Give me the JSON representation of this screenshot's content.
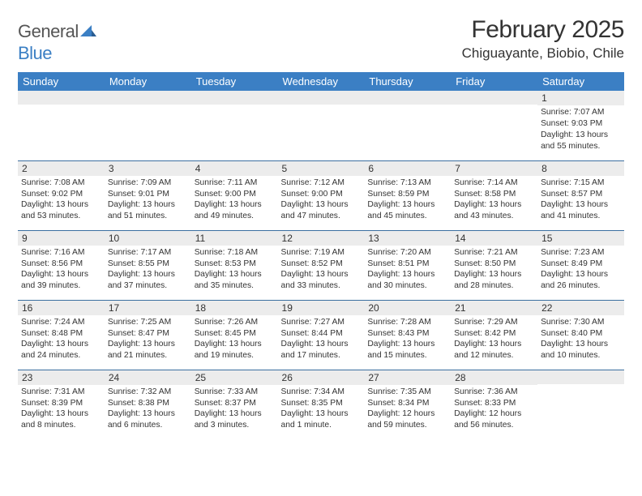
{
  "logo": {
    "text1": "General",
    "text2": "Blue"
  },
  "title": "February 2025",
  "location": "Chiguayante, Biobio, Chile",
  "header_bg": "#3b7fc4",
  "header_fg": "#ffffff",
  "daynum_bg": "#ececec",
  "rule_color": "#3b6fa0",
  "weekdays": [
    "Sunday",
    "Monday",
    "Tuesday",
    "Wednesday",
    "Thursday",
    "Friday",
    "Saturday"
  ],
  "weeks": [
    [
      {
        "n": "",
        "sr": "",
        "ss": "",
        "dl": ""
      },
      {
        "n": "",
        "sr": "",
        "ss": "",
        "dl": ""
      },
      {
        "n": "",
        "sr": "",
        "ss": "",
        "dl": ""
      },
      {
        "n": "",
        "sr": "",
        "ss": "",
        "dl": ""
      },
      {
        "n": "",
        "sr": "",
        "ss": "",
        "dl": ""
      },
      {
        "n": "",
        "sr": "",
        "ss": "",
        "dl": ""
      },
      {
        "n": "1",
        "sr": "Sunrise: 7:07 AM",
        "ss": "Sunset: 9:03 PM",
        "dl": "Daylight: 13 hours and 55 minutes."
      }
    ],
    [
      {
        "n": "2",
        "sr": "Sunrise: 7:08 AM",
        "ss": "Sunset: 9:02 PM",
        "dl": "Daylight: 13 hours and 53 minutes."
      },
      {
        "n": "3",
        "sr": "Sunrise: 7:09 AM",
        "ss": "Sunset: 9:01 PM",
        "dl": "Daylight: 13 hours and 51 minutes."
      },
      {
        "n": "4",
        "sr": "Sunrise: 7:11 AM",
        "ss": "Sunset: 9:00 PM",
        "dl": "Daylight: 13 hours and 49 minutes."
      },
      {
        "n": "5",
        "sr": "Sunrise: 7:12 AM",
        "ss": "Sunset: 9:00 PM",
        "dl": "Daylight: 13 hours and 47 minutes."
      },
      {
        "n": "6",
        "sr": "Sunrise: 7:13 AM",
        "ss": "Sunset: 8:59 PM",
        "dl": "Daylight: 13 hours and 45 minutes."
      },
      {
        "n": "7",
        "sr": "Sunrise: 7:14 AM",
        "ss": "Sunset: 8:58 PM",
        "dl": "Daylight: 13 hours and 43 minutes."
      },
      {
        "n": "8",
        "sr": "Sunrise: 7:15 AM",
        "ss": "Sunset: 8:57 PM",
        "dl": "Daylight: 13 hours and 41 minutes."
      }
    ],
    [
      {
        "n": "9",
        "sr": "Sunrise: 7:16 AM",
        "ss": "Sunset: 8:56 PM",
        "dl": "Daylight: 13 hours and 39 minutes."
      },
      {
        "n": "10",
        "sr": "Sunrise: 7:17 AM",
        "ss": "Sunset: 8:55 PM",
        "dl": "Daylight: 13 hours and 37 minutes."
      },
      {
        "n": "11",
        "sr": "Sunrise: 7:18 AM",
        "ss": "Sunset: 8:53 PM",
        "dl": "Daylight: 13 hours and 35 minutes."
      },
      {
        "n": "12",
        "sr": "Sunrise: 7:19 AM",
        "ss": "Sunset: 8:52 PM",
        "dl": "Daylight: 13 hours and 33 minutes."
      },
      {
        "n": "13",
        "sr": "Sunrise: 7:20 AM",
        "ss": "Sunset: 8:51 PM",
        "dl": "Daylight: 13 hours and 30 minutes."
      },
      {
        "n": "14",
        "sr": "Sunrise: 7:21 AM",
        "ss": "Sunset: 8:50 PM",
        "dl": "Daylight: 13 hours and 28 minutes."
      },
      {
        "n": "15",
        "sr": "Sunrise: 7:23 AM",
        "ss": "Sunset: 8:49 PM",
        "dl": "Daylight: 13 hours and 26 minutes."
      }
    ],
    [
      {
        "n": "16",
        "sr": "Sunrise: 7:24 AM",
        "ss": "Sunset: 8:48 PM",
        "dl": "Daylight: 13 hours and 24 minutes."
      },
      {
        "n": "17",
        "sr": "Sunrise: 7:25 AM",
        "ss": "Sunset: 8:47 PM",
        "dl": "Daylight: 13 hours and 21 minutes."
      },
      {
        "n": "18",
        "sr": "Sunrise: 7:26 AM",
        "ss": "Sunset: 8:45 PM",
        "dl": "Daylight: 13 hours and 19 minutes."
      },
      {
        "n": "19",
        "sr": "Sunrise: 7:27 AM",
        "ss": "Sunset: 8:44 PM",
        "dl": "Daylight: 13 hours and 17 minutes."
      },
      {
        "n": "20",
        "sr": "Sunrise: 7:28 AM",
        "ss": "Sunset: 8:43 PM",
        "dl": "Daylight: 13 hours and 15 minutes."
      },
      {
        "n": "21",
        "sr": "Sunrise: 7:29 AM",
        "ss": "Sunset: 8:42 PM",
        "dl": "Daylight: 13 hours and 12 minutes."
      },
      {
        "n": "22",
        "sr": "Sunrise: 7:30 AM",
        "ss": "Sunset: 8:40 PM",
        "dl": "Daylight: 13 hours and 10 minutes."
      }
    ],
    [
      {
        "n": "23",
        "sr": "Sunrise: 7:31 AM",
        "ss": "Sunset: 8:39 PM",
        "dl": "Daylight: 13 hours and 8 minutes."
      },
      {
        "n": "24",
        "sr": "Sunrise: 7:32 AM",
        "ss": "Sunset: 8:38 PM",
        "dl": "Daylight: 13 hours and 6 minutes."
      },
      {
        "n": "25",
        "sr": "Sunrise: 7:33 AM",
        "ss": "Sunset: 8:37 PM",
        "dl": "Daylight: 13 hours and 3 minutes."
      },
      {
        "n": "26",
        "sr": "Sunrise: 7:34 AM",
        "ss": "Sunset: 8:35 PM",
        "dl": "Daylight: 13 hours and 1 minute."
      },
      {
        "n": "27",
        "sr": "Sunrise: 7:35 AM",
        "ss": "Sunset: 8:34 PM",
        "dl": "Daylight: 12 hours and 59 minutes."
      },
      {
        "n": "28",
        "sr": "Sunrise: 7:36 AM",
        "ss": "Sunset: 8:33 PM",
        "dl": "Daylight: 12 hours and 56 minutes."
      },
      {
        "n": "",
        "sr": "",
        "ss": "",
        "dl": ""
      }
    ]
  ]
}
